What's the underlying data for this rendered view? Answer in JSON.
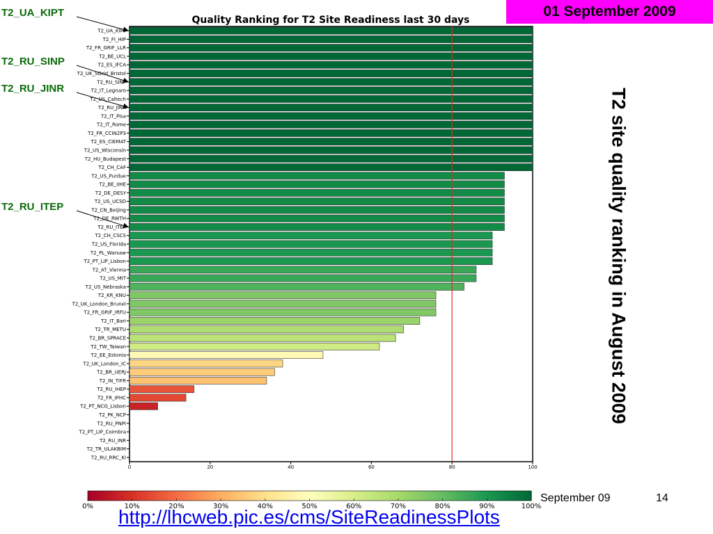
{
  "slide": {
    "date_badge": "01 September 2009",
    "side_title": "T2 site quality ranking in August 2009",
    "footer_date": "September 09",
    "page_number": "14",
    "link": "http://lhcweb.pic.es/cms/SiteReadinessPlots"
  },
  "highlights": [
    {
      "label": "T2_UA_KIPT",
      "target": "T2_UA_KIPT"
    },
    {
      "label": "T2_RU_SINP",
      "target": "T2_RU_SINP"
    },
    {
      "label": "T2_RU_JINR",
      "target": "T2_RU_JINR"
    },
    {
      "label": "T2_RU_ITEP",
      "target": "T2_RU_ITEP"
    }
  ],
  "colors": {
    "reference_line": "#d73027",
    "badge": "#ff00ff",
    "highlight_text": "#0a6a0a",
    "colormap": [
      "#a50026",
      "#d73027",
      "#f46d43",
      "#fdae61",
      "#fee08b",
      "#ffffbf",
      "#d9ef8b",
      "#a6d96a",
      "#66bd63",
      "#1a9850",
      "#006837"
    ]
  },
  "chart_data": {
    "type": "bar",
    "orientation": "horizontal",
    "title": "Quality Ranking for T2 Site Readiness last 30 days",
    "xlim": [
      0,
      100
    ],
    "xticks": [
      0,
      20,
      40,
      60,
      80,
      100
    ],
    "reference_line": 80,
    "categories": [
      "T2_UA_KIPT",
      "T2_FI_HIP",
      "T2_FR_GRIF_LLR",
      "T2_BE_UCL",
      "T2_ES_IFCA",
      "T2_UK_SGrid_Bristol",
      "T2_RU_SINP",
      "T2_IT_Legnaro",
      "T2_US_Caltech",
      "T2_RU_JINR",
      "T2_IT_Pisa",
      "T2_IT_Rome",
      "T2_FR_CCIN2P3",
      "T2_ES_CIEMAT",
      "T2_US_Wisconsin",
      "T2_HU_Budapest",
      "T2_CH_CAF",
      "T2_US_Purdue",
      "T2_BE_IIHE",
      "T2_DE_DESY",
      "T2_US_UCSD",
      "T2_CN_Beijing",
      "T2_DE_RWTH",
      "T2_RU_ITEP",
      "T2_CH_CSCS",
      "T2_US_Florida",
      "T2_PL_Warsaw",
      "T2_PT_LIP_Lisbon",
      "T2_AT_Vienna",
      "T2_US_MIT",
      "T2_US_Nebraska",
      "T2_KR_KNU",
      "T2_UK_London_Brunel",
      "T2_FR_GRIF_IRFU",
      "T2_IT_Bari",
      "T2_TR_METU",
      "T2_BR_SPRACE",
      "T2_TW_Taiwan",
      "T2_EE_Estonia",
      "T2_UK_London_IC",
      "T2_BR_UERJ",
      "T2_IN_TIFR",
      "T2_RU_IHEP",
      "T2_FR_IPHC",
      "T2_PT_NCG_Lisbon",
      "T2_PK_NCP",
      "T2_RU_PNPI",
      "T2_PT_LIP_Coimbra",
      "T2_RU_INR",
      "T2_TR_ULAKBIM",
      "T2_RU_RRC_KI"
    ],
    "values": [
      100,
      100,
      100,
      100,
      100,
      100,
      100,
      100,
      100,
      100,
      100,
      100,
      100,
      100,
      100,
      100,
      100,
      93,
      93,
      93,
      93,
      93,
      93,
      93,
      90,
      90,
      90,
      90,
      86,
      86,
      83,
      76,
      76,
      76,
      72,
      68,
      66,
      62,
      48,
      38,
      36,
      34,
      16,
      14,
      7,
      0,
      0,
      0,
      0,
      0,
      0
    ],
    "colorbar": {
      "labels": [
        "0%",
        "10%",
        "20%",
        "30%",
        "40%",
        "50%",
        "60%",
        "70%",
        "80%",
        "90%",
        "100%"
      ]
    }
  }
}
